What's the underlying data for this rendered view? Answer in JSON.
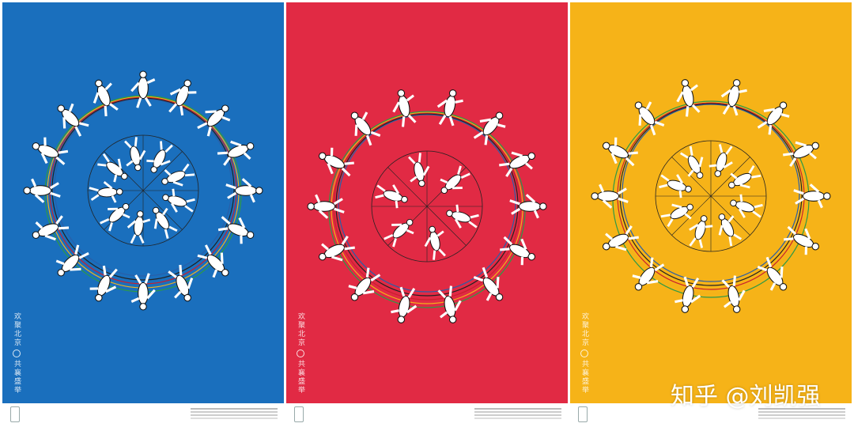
{
  "posters": [
    {
      "slogan_top": "欢聚北京",
      "slogan_bottom": "共襄盛举"
    },
    {
      "slogan_top": "欢聚北京",
      "slogan_bottom": "共襄盛举"
    },
    {
      "slogan_top": "欢聚北京",
      "slogan_bottom": "共襄盛举"
    }
  ],
  "watermark": "知乎 @刘凯强"
}
